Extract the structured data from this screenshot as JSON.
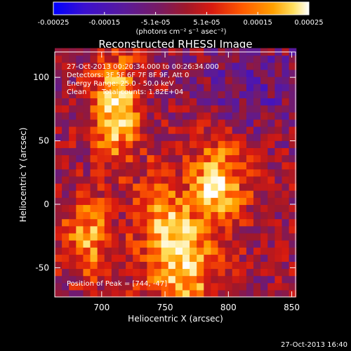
{
  "chart_data": {
    "type": "heatmap",
    "title": "Reconstructed RHESSI Image",
    "xlabel": "Heliocentric X (arcsec)",
    "ylabel": "Heliocentric Y (arcsec)",
    "xlim": [
      663,
      853
    ],
    "ylim": [
      -73,
      120
    ],
    "xticks": [
      700,
      750,
      800,
      850
    ],
    "yticks": [
      -50,
      0,
      50,
      100
    ],
    "colorbar": {
      "ticks": [
        "-0.00025",
        "-0.00015",
        "-5.1e-05",
        "5.1e-05",
        "0.00015",
        "0.00025"
      ],
      "range": [
        -0.00025,
        0.00025
      ],
      "units": "(photons cm⁻² s⁻¹ asec⁻²)",
      "colors": [
        "#0000ff",
        "#3a10d0",
        "#5a1a9a",
        "#7a1a60",
        "#a0182a",
        "#d81a10",
        "#ff5a00",
        "#ffa000",
        "#ffe060",
        "#ffffff"
      ]
    },
    "annotations": [
      "27-Oct-2013 00:20:34.000 to 00:26:34.000",
      "Detectors: 3F 5F 6F 7F 8F 9F, Att 0",
      "Energy Range: 25.0 - 50.0 keV",
      "Clean",
      "Total counts: 1.82E+04"
    ],
    "peak_label": "Position of Peak = [744, -47]",
    "peak": [
      744,
      -47
    ],
    "grid": false
  },
  "footer": {
    "timestamp": "27-Oct-2013 16:40"
  }
}
